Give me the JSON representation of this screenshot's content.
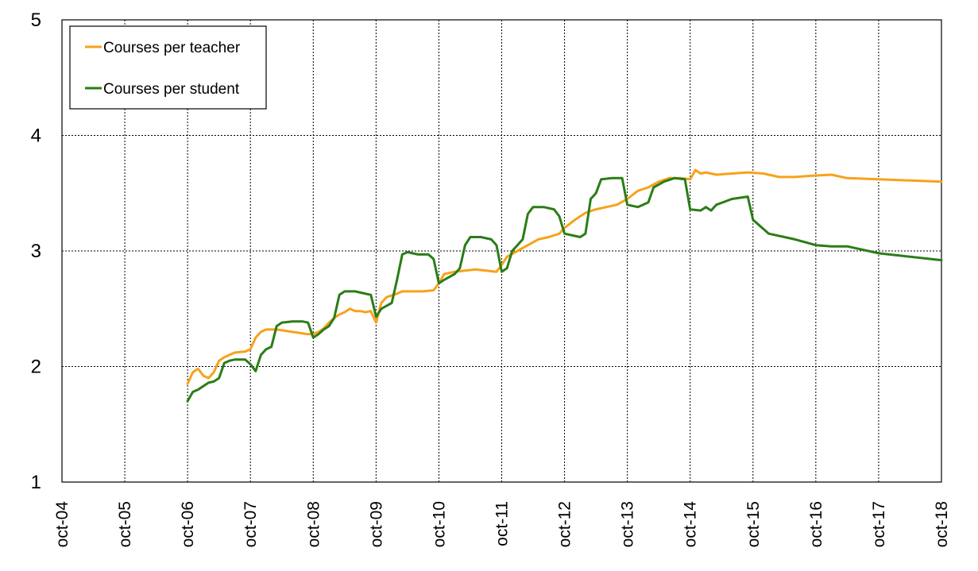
{
  "chart_data": {
    "type": "line",
    "title": "",
    "xlabel": "",
    "ylabel": "",
    "x_ticks": [
      "oct-04",
      "oct-05",
      "oct-06",
      "oct-07",
      "oct-08",
      "oct-09",
      "oct-10",
      "oct-11",
      "oct-12",
      "oct-13",
      "oct-14",
      "oct-15",
      "oct-16",
      "oct-17",
      "oct-18"
    ],
    "x_range": [
      "oct-04",
      "oct-18"
    ],
    "y_ticks": [
      "1",
      "2",
      "3",
      "4",
      "5"
    ],
    "ylim": [
      1,
      5
    ],
    "grid": true,
    "legend_position": "top-left",
    "series": [
      {
        "name": "Courses per teacher",
        "color": "#f7a21b",
        "points": [
          [
            "2006-10",
            1.85
          ],
          [
            "2006-11",
            1.95
          ],
          [
            "2006-12",
            1.98
          ],
          [
            "2007-01",
            1.92
          ],
          [
            "2007-02",
            1.9
          ],
          [
            "2007-03",
            1.95
          ],
          [
            "2007-04",
            2.05
          ],
          [
            "2007-05",
            2.08
          ],
          [
            "2007-06",
            2.1
          ],
          [
            "2007-07",
            2.12
          ],
          [
            "2007-09",
            2.13
          ],
          [
            "2007-10",
            2.15
          ],
          [
            "2007-11",
            2.25
          ],
          [
            "2007-12",
            2.3
          ],
          [
            "2008-01",
            2.32
          ],
          [
            "2008-03",
            2.32
          ],
          [
            "2008-06",
            2.3
          ],
          [
            "2008-09",
            2.28
          ],
          [
            "2008-10",
            2.28
          ],
          [
            "2008-11",
            2.3
          ],
          [
            "2008-12",
            2.33
          ],
          [
            "2009-01",
            2.38
          ],
          [
            "2009-02",
            2.42
          ],
          [
            "2009-03",
            2.45
          ],
          [
            "2009-04",
            2.47
          ],
          [
            "2009-05",
            2.5
          ],
          [
            "2009-06",
            2.48
          ],
          [
            "2009-07",
            2.48
          ],
          [
            "2009-08",
            2.47
          ],
          [
            "2009-09",
            2.48
          ],
          [
            "2009-10",
            2.38
          ],
          [
            "2009-11",
            2.55
          ],
          [
            "2009-12",
            2.6
          ],
          [
            "2010-02",
            2.63
          ],
          [
            "2010-03",
            2.65
          ],
          [
            "2010-05",
            2.65
          ],
          [
            "2010-07",
            2.65
          ],
          [
            "2010-09",
            2.66
          ],
          [
            "2010-10",
            2.72
          ],
          [
            "2010-11",
            2.8
          ],
          [
            "2011-01",
            2.82
          ],
          [
            "2011-03",
            2.83
          ],
          [
            "2011-05",
            2.84
          ],
          [
            "2011-07",
            2.83
          ],
          [
            "2011-09",
            2.82
          ],
          [
            "2011-10",
            2.88
          ],
          [
            "2011-11",
            2.95
          ],
          [
            "2012-01",
            3.0
          ],
          [
            "2012-03",
            3.05
          ],
          [
            "2012-05",
            3.1
          ],
          [
            "2012-07",
            3.12
          ],
          [
            "2012-09",
            3.15
          ],
          [
            "2012-10",
            3.2
          ],
          [
            "2012-12",
            3.27
          ],
          [
            "2013-02",
            3.33
          ],
          [
            "2013-04",
            3.36
          ],
          [
            "2013-06",
            3.38
          ],
          [
            "2013-08",
            3.4
          ],
          [
            "2013-10",
            3.45
          ],
          [
            "2013-12",
            3.52
          ],
          [
            "2014-02",
            3.55
          ],
          [
            "2014-04",
            3.6
          ],
          [
            "2014-06",
            3.63
          ],
          [
            "2014-08",
            3.63
          ],
          [
            "2014-10",
            3.62
          ],
          [
            "2014-11",
            3.7
          ],
          [
            "2014-12",
            3.67
          ],
          [
            "2015-01",
            3.68
          ],
          [
            "2015-03",
            3.66
          ],
          [
            "2015-06",
            3.67
          ],
          [
            "2015-09",
            3.68
          ],
          [
            "2015-12",
            3.67
          ],
          [
            "2016-03",
            3.64
          ],
          [
            "2016-06",
            3.64
          ],
          [
            "2016-09",
            3.65
          ],
          [
            "2017-01",
            3.66
          ],
          [
            "2017-04",
            3.63
          ],
          [
            "2017-10",
            3.62
          ],
          [
            "2018-10",
            3.6
          ]
        ]
      },
      {
        "name": "Courses per student",
        "color": "#2a7d17",
        "points": [
          [
            "2006-10",
            1.7
          ],
          [
            "2006-11",
            1.78
          ],
          [
            "2006-12",
            1.8
          ],
          [
            "2007-01",
            1.83
          ],
          [
            "2007-02",
            1.86
          ],
          [
            "2007-03",
            1.87
          ],
          [
            "2007-04",
            1.9
          ],
          [
            "2007-05",
            2.03
          ],
          [
            "2007-06",
            2.05
          ],
          [
            "2007-07",
            2.06
          ],
          [
            "2007-09",
            2.06
          ],
          [
            "2007-10",
            2.02
          ],
          [
            "2007-11",
            1.96
          ],
          [
            "2007-12",
            2.1
          ],
          [
            "2008-01",
            2.15
          ],
          [
            "2008-02",
            2.17
          ],
          [
            "2008-03",
            2.35
          ],
          [
            "2008-04",
            2.38
          ],
          [
            "2008-06",
            2.39
          ],
          [
            "2008-08",
            2.39
          ],
          [
            "2008-09",
            2.38
          ],
          [
            "2008-10",
            2.25
          ],
          [
            "2008-11",
            2.28
          ],
          [
            "2008-12",
            2.32
          ],
          [
            "2009-01",
            2.35
          ],
          [
            "2009-02",
            2.42
          ],
          [
            "2009-03",
            2.62
          ],
          [
            "2009-04",
            2.65
          ],
          [
            "2009-06",
            2.65
          ],
          [
            "2009-07",
            2.64
          ],
          [
            "2009-09",
            2.62
          ],
          [
            "2009-10",
            2.43
          ],
          [
            "2009-11",
            2.5
          ],
          [
            "2010-01",
            2.55
          ],
          [
            "2010-02",
            2.75
          ],
          [
            "2010-03",
            2.97
          ],
          [
            "2010-04",
            2.99
          ],
          [
            "2010-06",
            2.97
          ],
          [
            "2010-08",
            2.97
          ],
          [
            "2010-09",
            2.93
          ],
          [
            "2010-10",
            2.72
          ],
          [
            "2010-11",
            2.75
          ],
          [
            "2011-01",
            2.8
          ],
          [
            "2011-02",
            2.85
          ],
          [
            "2011-03",
            3.05
          ],
          [
            "2011-04",
            3.12
          ],
          [
            "2011-06",
            3.12
          ],
          [
            "2011-08",
            3.1
          ],
          [
            "2011-09",
            3.05
          ],
          [
            "2011-10",
            2.82
          ],
          [
            "2011-11",
            2.85
          ],
          [
            "2011-12",
            3.0
          ],
          [
            "2012-01",
            3.05
          ],
          [
            "2012-02",
            3.1
          ],
          [
            "2012-03",
            3.32
          ],
          [
            "2012-04",
            3.38
          ],
          [
            "2012-06",
            3.38
          ],
          [
            "2012-08",
            3.36
          ],
          [
            "2012-09",
            3.3
          ],
          [
            "2012-10",
            3.15
          ],
          [
            "2012-12",
            3.13
          ],
          [
            "2013-01",
            3.12
          ],
          [
            "2013-02",
            3.15
          ],
          [
            "2013-03",
            3.45
          ],
          [
            "2013-04",
            3.5
          ],
          [
            "2013-05",
            3.62
          ],
          [
            "2013-07",
            3.63
          ],
          [
            "2013-09",
            3.63
          ],
          [
            "2013-10",
            3.4
          ],
          [
            "2013-12",
            3.38
          ],
          [
            "2014-02",
            3.42
          ],
          [
            "2014-03",
            3.55
          ],
          [
            "2014-05",
            3.6
          ],
          [
            "2014-07",
            3.63
          ],
          [
            "2014-09",
            3.62
          ],
          [
            "2014-10",
            3.36
          ],
          [
            "2014-12",
            3.35
          ],
          [
            "2015-01",
            3.38
          ],
          [
            "2015-02",
            3.35
          ],
          [
            "2015-03",
            3.4
          ],
          [
            "2015-06",
            3.45
          ],
          [
            "2015-09",
            3.47
          ],
          [
            "2015-10",
            3.27
          ],
          [
            "2016-01",
            3.15
          ],
          [
            "2016-06",
            3.1
          ],
          [
            "2016-10",
            3.05
          ],
          [
            "2017-01",
            3.04
          ],
          [
            "2017-04",
            3.04
          ],
          [
            "2017-10",
            2.98
          ],
          [
            "2018-10",
            2.92
          ]
        ]
      }
    ]
  }
}
